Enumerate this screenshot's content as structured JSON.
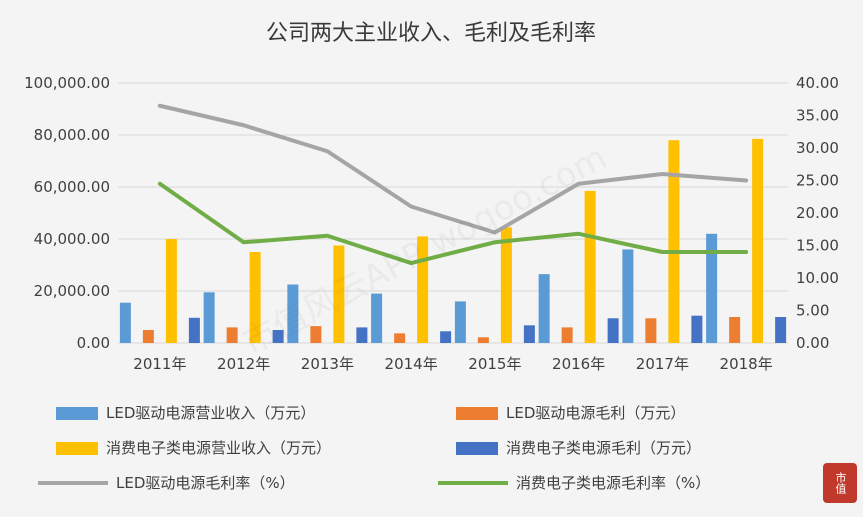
{
  "chart_data": {
    "type": "bar",
    "title": "公司两大主业收入、毛利及毛利率",
    "categories": [
      "2011年",
      "2012年",
      "2013年",
      "2014年",
      "2015年",
      "2016年",
      "2017年",
      "2018年"
    ],
    "left_axis": {
      "ylim": [
        0,
        100000
      ],
      "ticks": [
        "0.00",
        "20,000.00",
        "40,000.00",
        "60,000.00",
        "80,000.00",
        "100,000.00"
      ]
    },
    "right_axis": {
      "ylim": [
        0,
        40
      ],
      "ticks": [
        "0.00",
        "5.00",
        "10.00",
        "15.00",
        "20.00",
        "25.00",
        "30.00",
        "35.00",
        "40.00"
      ]
    },
    "bar_series": [
      {
        "name": "LED驱动电源营业收入（万元）",
        "color": "#5b9bd5",
        "values": [
          15500,
          19500,
          22500,
          19000,
          16000,
          26500,
          36000,
          42000
        ]
      },
      {
        "name": "LED驱动电源毛利（万元）",
        "color": "#ed7d31",
        "values": [
          5000,
          6000,
          6500,
          3700,
          2200,
          6000,
          9500,
          10000
        ]
      },
      {
        "name": "消费电子类电源营业收入（万元）",
        "color": "#ffc000",
        "values": [
          40000,
          35000,
          37500,
          41000,
          44500,
          58500,
          78000,
          78500
        ]
      },
      {
        "name": "消费电子类电源毛利（万元）",
        "color": "#4472c4",
        "values": [
          9700,
          5000,
          6000,
          4500,
          6800,
          9500,
          10500,
          10000
        ]
      }
    ],
    "line_series": [
      {
        "name": "LED驱动电源毛利率（%）",
        "color": "#a5a5a5",
        "values": [
          36.5,
          33.5,
          29.5,
          21.0,
          17.0,
          24.5,
          26.0,
          25.0
        ]
      },
      {
        "name": "消费电子类电源毛利率（%）",
        "color": "#70ad47",
        "values": [
          24.5,
          15.5,
          16.5,
          12.3,
          15.5,
          16.8,
          14.0,
          14.0
        ]
      }
    ],
    "legend_position": "bottom",
    "grid": true
  },
  "watermark": "市值风云APP wogoo.com",
  "stamp": "市值"
}
